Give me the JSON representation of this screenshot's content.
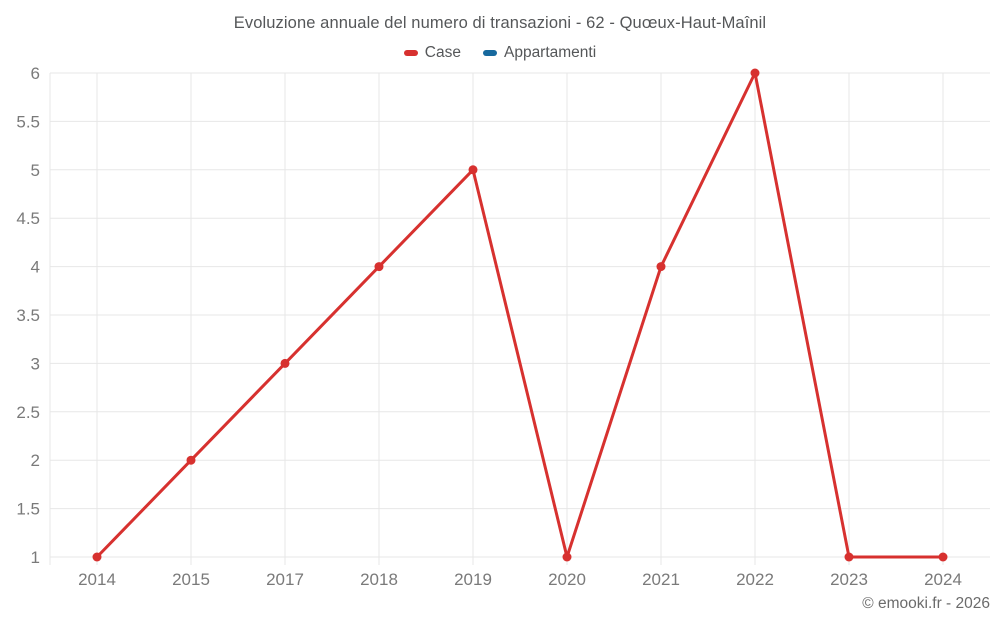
{
  "chart_data": {
    "type": "line",
    "title": "Evoluzione annuale del numero di transazioni - 62 - Quœux-Haut-Maînil",
    "categories": [
      "2014",
      "2015",
      "2017",
      "2018",
      "2019",
      "2020",
      "2021",
      "2022",
      "2023",
      "2024"
    ],
    "series": [
      {
        "name": "Case",
        "color": "#d7312f",
        "values": [
          1,
          2,
          3,
          4,
          5,
          1,
          4,
          6,
          1,
          1
        ]
      },
      {
        "name": "Appartamenti",
        "color": "#17699e",
        "values": []
      }
    ],
    "xlabel": "",
    "ylabel": "",
    "ylim": [
      1,
      6
    ],
    "ytick_step": 0.5,
    "yticks": [
      "1",
      "1.5",
      "2",
      "2.5",
      "3",
      "3.5",
      "4",
      "4.5",
      "5",
      "5.5",
      "6"
    ],
    "grid": true,
    "legend_position": "top",
    "line_width": 3,
    "marker_radius": 4.5
  },
  "footer": {
    "copyright": "© emooki.fr - 2026"
  },
  "colors": {
    "background": "#ffffff",
    "grid": "#e7e7e7",
    "axis_text": "#7a7a7a",
    "title_text": "#555759",
    "footer_text": "#6b6b6b",
    "series_case": "#d7312f",
    "series_appartamenti": "#17699e"
  }
}
